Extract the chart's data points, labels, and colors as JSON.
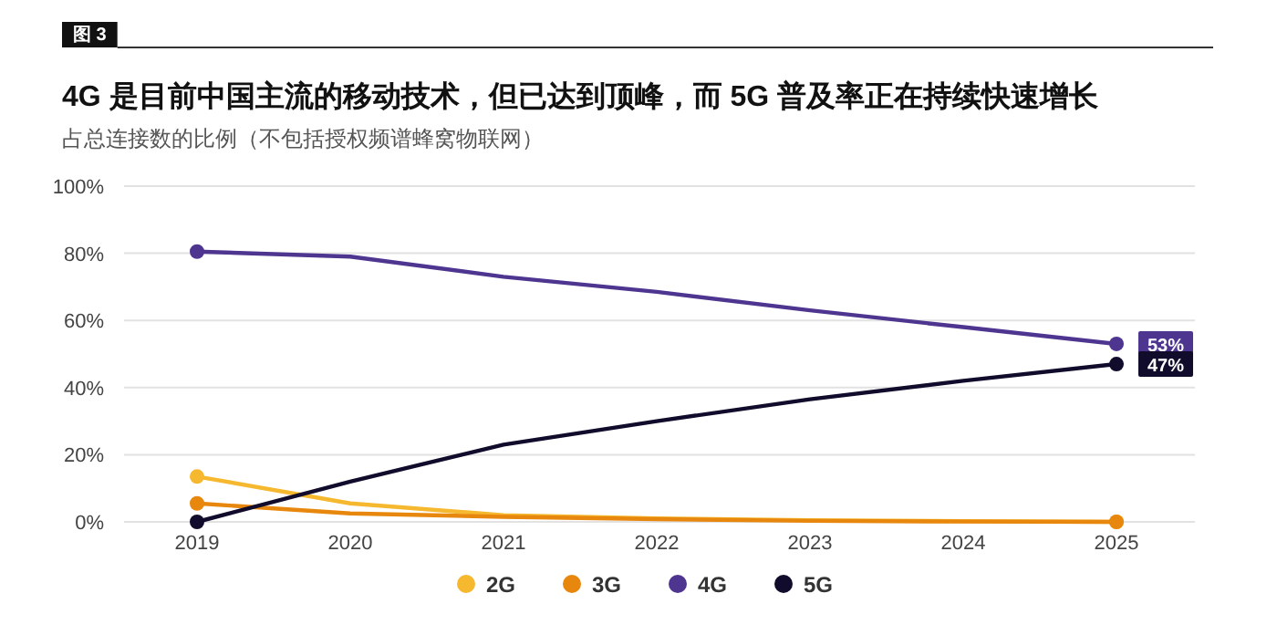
{
  "chart_data": {
    "type": "line",
    "title": "4G 是目前中国主流的移动技术，但已达到顶峰，而 5G 普及率正在持续快速增长",
    "subtitle": "占总连接数的比例（不包括授权频谱蜂窝物联网）",
    "annotations": [
      "图 3"
    ],
    "categories": [
      "2019",
      "2020",
      "2021",
      "2022",
      "2023",
      "2024",
      "2025"
    ],
    "series": [
      {
        "name": "2G",
        "color": "#f5b82e",
        "values": [
          13.5,
          5.5,
          2,
          1,
          0.5,
          0.2,
          0
        ]
      },
      {
        "name": "3G",
        "color": "#e8870e",
        "values": [
          5.5,
          2.5,
          1.5,
          0.8,
          0.3,
          0.1,
          0
        ]
      },
      {
        "name": "4G",
        "color": "#4e3590",
        "values": [
          80.5,
          79,
          73,
          68.5,
          63,
          58,
          53
        ],
        "value_labels": [
          null,
          null,
          null,
          null,
          null,
          null,
          "53%"
        ]
      },
      {
        "name": "5G",
        "color": "#120c2c",
        "values": [
          0,
          12,
          23,
          30,
          36.5,
          42,
          47
        ],
        "value_labels": [
          null,
          null,
          null,
          null,
          null,
          null,
          "47%"
        ]
      }
    ],
    "ylim": [
      0,
      100
    ],
    "yticks": [
      {
        "value": 0,
        "label": "0%"
      },
      {
        "value": 20,
        "label": "20%"
      },
      {
        "value": 40,
        "label": "40%"
      },
      {
        "value": 60,
        "label": "60%"
      },
      {
        "value": 80,
        "label": "80%"
      },
      {
        "value": 100,
        "label": "100%"
      }
    ],
    "grid": "y",
    "legend": "bottom",
    "line_style": "solid"
  }
}
